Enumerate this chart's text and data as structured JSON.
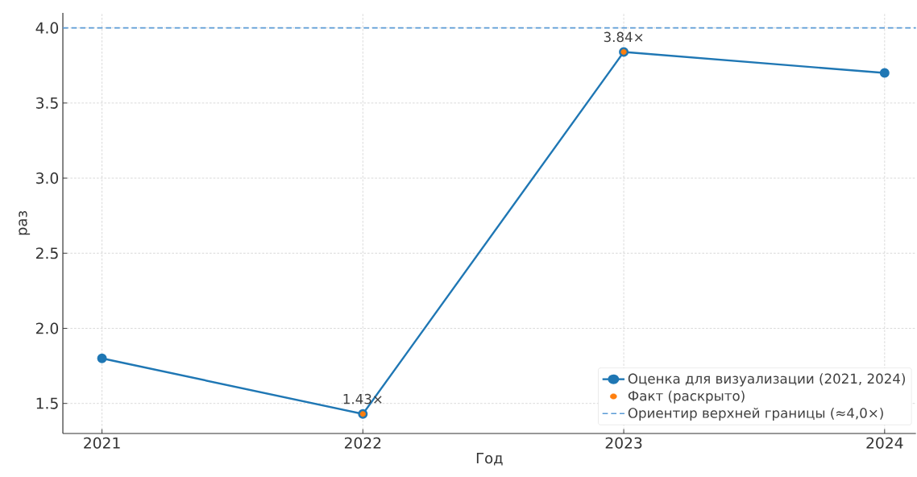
{
  "chart_data": {
    "type": "line",
    "xlabel": "Год",
    "ylabel": "раз",
    "x": [
      2021,
      2022,
      2023,
      2024
    ],
    "series": [
      {
        "name": "Оценка для визуализации (2021, 2024)",
        "color": "#1f77b4",
        "values": [
          1.8,
          1.43,
          3.84,
          3.7
        ],
        "marker": "circle",
        "line_style": "solid"
      },
      {
        "name": "Факт (раскрыто)",
        "type": "scatter",
        "color": "#ff7f0e",
        "values": [
          null,
          1.43,
          3.84,
          null
        ],
        "marker": "circle"
      }
    ],
    "ref_lines": [
      {
        "axis": "y",
        "value": 4.0,
        "label": "Ориентир верхней границы (≈4,0×)",
        "color": "#5b9bd5",
        "line_style": "dashed"
      }
    ],
    "annotations": [
      {
        "text": "1.43×",
        "x": 2022,
        "y": 1.43
      },
      {
        "text": "3.84×",
        "x": 2023,
        "y": 3.84
      }
    ],
    "xlim": [
      2020.85,
      2024.12
    ],
    "ylim": [
      1.3,
      4.1
    ],
    "xticks": [
      2021,
      2022,
      2023,
      2024
    ],
    "yticks": [
      1.5,
      {
        "value": 2.0,
        "label": "2.0"
      },
      2.5,
      {
        "value": 3.0,
        "label": "3.0"
      },
      3.5,
      {
        "value": 4.0,
        "label": "4.0"
      }
    ],
    "grid": true,
    "legend": "bottom right"
  }
}
